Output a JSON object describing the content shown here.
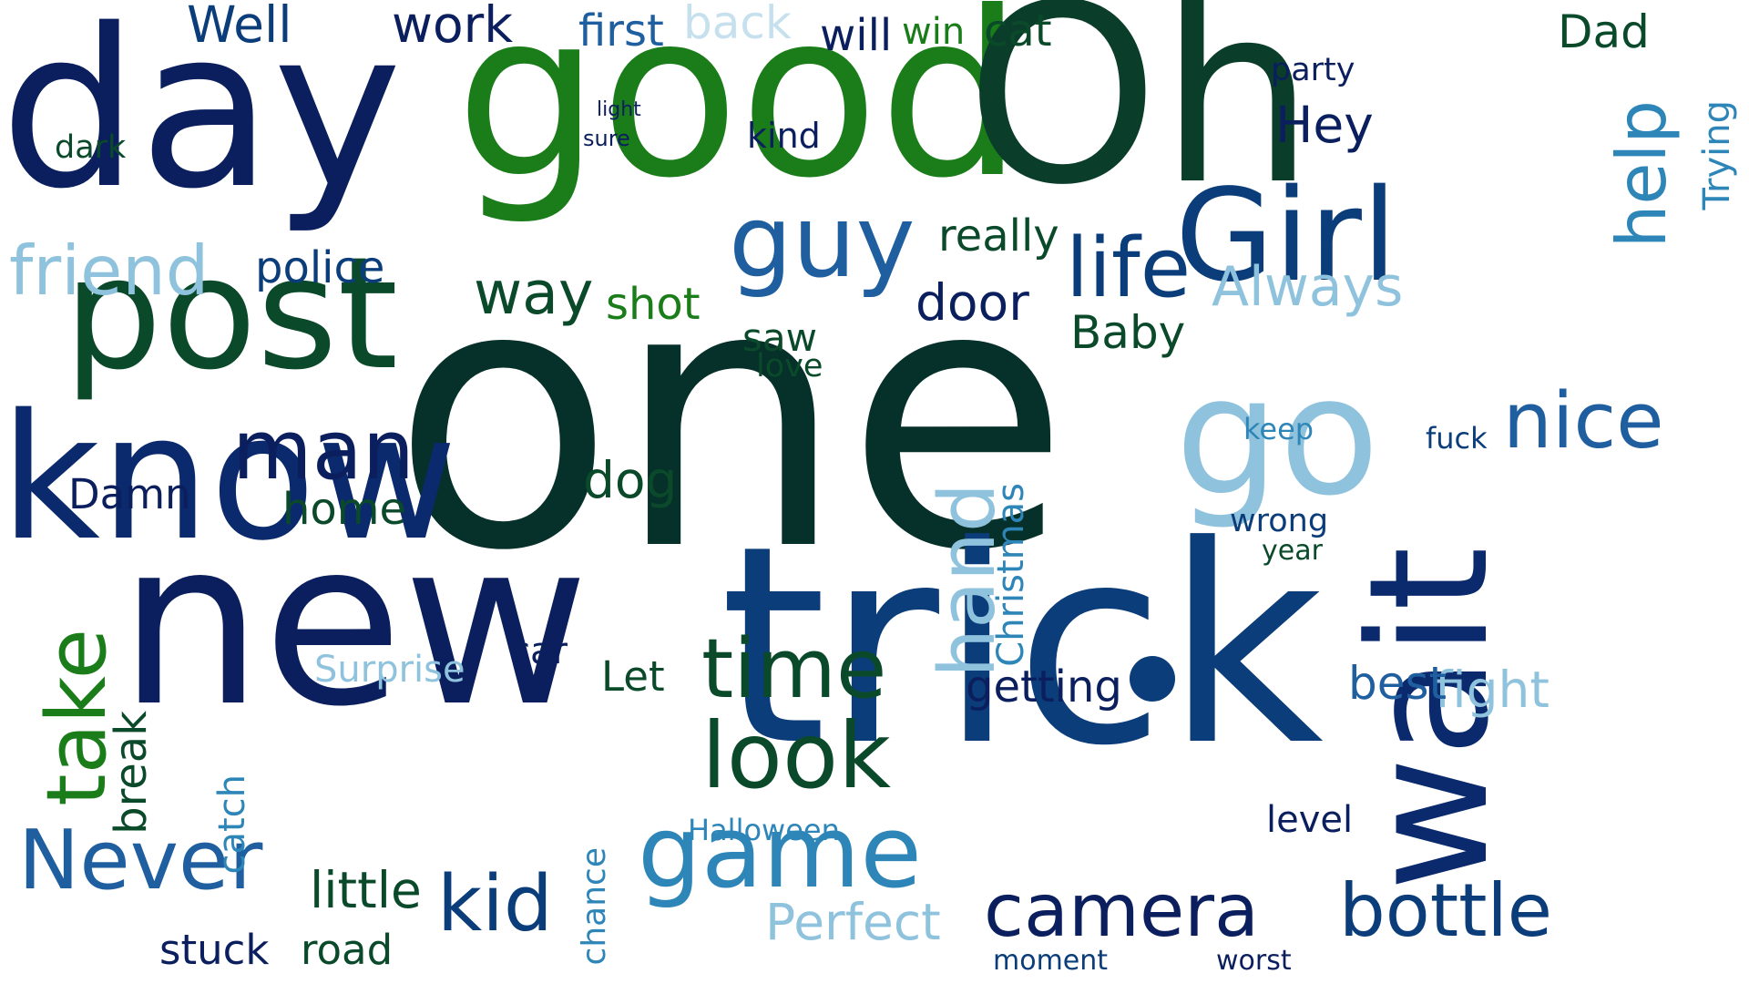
{
  "palette": {
    "navy": "#0b1f5e",
    "dark_green": "#0a4a2a",
    "green": "#1a7d1a",
    "blue": "#1f5fa0",
    "mid_blue": "#2e86b8",
    "light_blue": "#8fc3dd",
    "pale_blue": "#c6e0ee",
    "deep_teal": "#06302a"
  },
  "words": [
    "one",
    "trick",
    "good",
    "Oh",
    "day",
    "new",
    "post",
    "know",
    "wait",
    "go",
    "Girl",
    "guy",
    "game",
    "Never",
    "take",
    "look",
    "man",
    "time",
    "camera",
    "life",
    "kid",
    "friend",
    "nice",
    "bottle",
    "hand",
    "help",
    "Well",
    "door",
    "way",
    "Always",
    "Dad",
    "Hey",
    "Baby",
    "first",
    "shot",
    "police",
    "cat",
    "work",
    "back",
    "will",
    "win",
    "home",
    "dog",
    "fight",
    "little",
    "Perfect",
    "Surprise",
    "stuck",
    "road",
    "Halloween",
    "getting",
    "best",
    "car",
    "Let",
    "Christmas",
    "really",
    "saw",
    "love",
    "party",
    "Damn",
    "dark",
    "moment",
    "worst",
    "wrong",
    "year",
    "keep",
    "fuck",
    "break",
    "catch",
    "chance",
    "level",
    "Trying",
    "kind",
    "sure",
    "light"
  ]
}
